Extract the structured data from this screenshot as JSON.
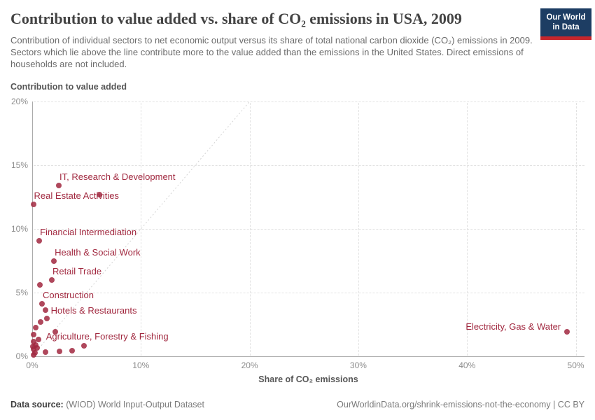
{
  "header": {
    "title": "Contribution to value added vs. share of CO₂ emissions in USA, 2009",
    "subtitle": "Contribution of individual sectors to net economic output versus its share of total national carbon dioxide (CO₂) emissions in 2009. Sectors which lie above the line contribute more to the value added than the emissions in the United States. Direct emissions of households are not included."
  },
  "logo": {
    "line1": "Our World",
    "line2": "in Data",
    "bg_color": "#1d3d63",
    "stripe_color": "#c5262c"
  },
  "colors": {
    "accent_red": "#a1283f",
    "axis_line": "#ababab",
    "gridline": "#e2e2e2",
    "tick_label": "#8c8c8c",
    "axis_title": "#565656",
    "title_text": "#434343",
    "subtitle_text": "#6b6b6b"
  },
  "chart_data": {
    "type": "scatter",
    "title": "Contribution to value added vs. share of CO₂ emissions in USA, 2009",
    "xlabel": "Share of CO₂ emissions",
    "ylabel": "Contribution to value added",
    "xlim": [
      0,
      50.8
    ],
    "ylim": [
      0,
      20
    ],
    "grid": true,
    "x_ticks": [
      {
        "v": 0,
        "t": "0%"
      },
      {
        "v": 10,
        "t": "10%"
      },
      {
        "v": 20,
        "t": "20%"
      },
      {
        "v": 30,
        "t": "30%"
      },
      {
        "v": 40,
        "t": "40%"
      },
      {
        "v": 50,
        "t": "50%"
      }
    ],
    "y_ticks": [
      {
        "v": 0,
        "t": "0%"
      },
      {
        "v": 5,
        "t": "5%"
      },
      {
        "v": 10,
        "t": "10%"
      },
      {
        "v": 15,
        "t": "15%"
      },
      {
        "v": 20,
        "t": "20%"
      }
    ],
    "reference_line": {
      "x1": 0,
      "y1": 0,
      "x2": 20,
      "y2": 20
    },
    "points": [
      {
        "x": 2.45,
        "y": 13.4,
        "label": "IT, Research & Development",
        "placement": "above"
      },
      {
        "x": 6.15,
        "y": 12.7
      },
      {
        "x": 0.1,
        "y": 11.9,
        "label": "Real Estate Activities",
        "placement": "above"
      },
      {
        "x": 0.65,
        "y": 9.05,
        "label": "Financial Intermediation",
        "placement": "above"
      },
      {
        "x": 2.0,
        "y": 7.5,
        "label": "Health & Social Work",
        "placement": "above"
      },
      {
        "x": 1.8,
        "y": 6.0,
        "label": "Retail Trade",
        "placement": "above"
      },
      {
        "x": 0.7,
        "y": 5.6
      },
      {
        "x": 0.9,
        "y": 4.1,
        "label": "Construction",
        "placement": "above"
      },
      {
        "x": 1.2,
        "y": 3.6,
        "label": "Hotels & Restaurants",
        "placement": "right"
      },
      {
        "x": 1.35,
        "y": 2.95
      },
      {
        "x": 0.8,
        "y": 2.7
      },
      {
        "x": 0.35,
        "y": 2.25
      },
      {
        "x": 0.15,
        "y": 1.7
      },
      {
        "x": 2.1,
        "y": 1.9
      },
      {
        "x": 0.6,
        "y": 1.3
      },
      {
        "x": 0.15,
        "y": 1.15
      },
      {
        "x": 0.35,
        "y": 0.9
      },
      {
        "x": 0.05,
        "y": 0.75
      },
      {
        "x": 0.45,
        "y": 0.65
      },
      {
        "x": 0.15,
        "y": 0.55
      },
      {
        "x": 0.25,
        "y": 0.3
      },
      {
        "x": 0.1,
        "y": 0.1
      },
      {
        "x": 1.25,
        "y": 0.35
      },
      {
        "x": 2.5,
        "y": 0.4
      },
      {
        "x": 3.65,
        "y": 0.45
      },
      {
        "x": 4.75,
        "y": 0.85,
        "label": "Agriculture, Forestry & Fishing",
        "placement": "above-left"
      },
      {
        "x": 49.2,
        "y": 1.95,
        "label": "Electricity, Gas & Water",
        "placement": "left"
      }
    ]
  },
  "footer": {
    "source_label": "Data source:",
    "source_value": "(WIOD) World Input-Output Dataset",
    "credit": "OurWorldinData.org/shrink-emissions-not-the-economy | CC BY"
  }
}
